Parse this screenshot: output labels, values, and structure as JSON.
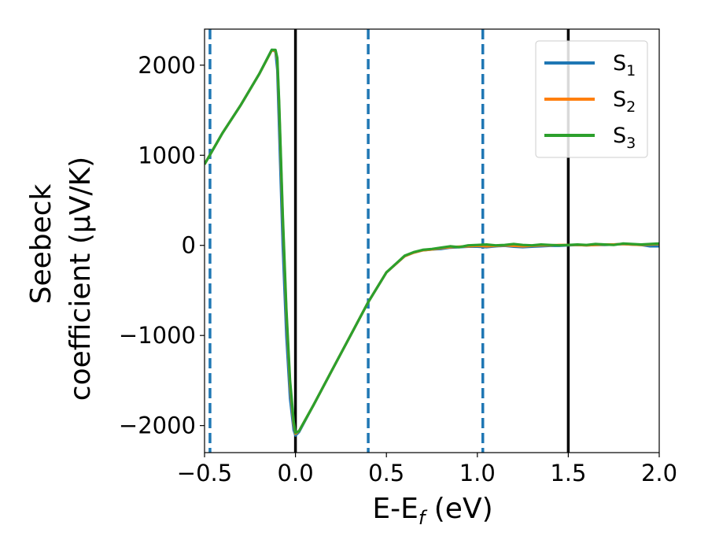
{
  "chart_data": {
    "type": "line",
    "xlabel": "E-E",
    "xlabel_sub": "f",
    "xlabel_unit": " (eV)",
    "ylabel_line1": "Seebeck",
    "ylabel_line2": "coefficient  (μV/K)",
    "xlim": [
      -0.5,
      2.0
    ],
    "ylim": [
      -2300,
      2400
    ],
    "xticks": [
      -0.5,
      0.0,
      0.5,
      1.0,
      1.5,
      2.0
    ],
    "xtick_labels": [
      "−0.5",
      "0.0",
      "0.5",
      "1.0",
      "1.5",
      "2.0"
    ],
    "yticks": [
      -2000,
      -1000,
      0,
      1000,
      2000
    ],
    "ytick_labels": [
      "−2000",
      "−1000",
      "0",
      "1000",
      "2000"
    ],
    "grid": false,
    "legend_position": "top-right",
    "vlines": [
      {
        "x": -0.47,
        "style": "dashed",
        "color": "#1f77b4"
      },
      {
        "x": 0.0,
        "style": "solid",
        "color": "#000000"
      },
      {
        "x": 0.4,
        "style": "dashed",
        "color": "#1f77b4"
      },
      {
        "x": 1.03,
        "style": "dashed",
        "color": "#1f77b4"
      },
      {
        "x": 1.5,
        "style": "solid",
        "color": "#000000"
      }
    ],
    "series": [
      {
        "name": "S",
        "sub": "1",
        "color": "#1f77b4",
        "x": [
          -0.5,
          -0.4,
          -0.3,
          -0.2,
          -0.13,
          -0.11,
          -0.1,
          -0.09,
          -0.07,
          -0.05,
          -0.03,
          -0.01,
          0.0,
          0.02,
          0.1,
          0.2,
          0.3,
          0.4,
          0.5,
          0.6,
          0.65,
          0.7,
          0.75,
          0.8,
          0.85,
          0.9,
          0.95,
          1.0,
          1.05,
          1.1,
          1.15,
          1.2,
          1.25,
          1.3,
          1.35,
          1.4,
          1.45,
          1.5,
          1.55,
          1.6,
          1.65,
          1.7,
          1.75,
          1.8,
          1.85,
          1.9,
          1.95,
          2.0
        ],
        "y": [
          900,
          1250,
          1560,
          1900,
          2170,
          2150,
          1950,
          1300,
          0,
          -1000,
          -1700,
          -2050,
          -2110,
          -2070,
          -1770,
          -1390,
          -1010,
          -630,
          -300,
          -120,
          -80,
          -55,
          -45,
          -40,
          -25,
          -20,
          -15,
          -15,
          -20,
          -10,
          -5,
          -15,
          -20,
          -15,
          -10,
          -5,
          -5,
          0,
          5,
          0,
          5,
          5,
          10,
          15,
          10,
          5,
          -10,
          -10
        ]
      },
      {
        "name": "S",
        "sub": "2",
        "color": "#ff7f0e",
        "x": [
          -0.5,
          -0.4,
          -0.3,
          -0.2,
          -0.13,
          -0.11,
          -0.1,
          -0.09,
          -0.07,
          -0.05,
          -0.03,
          -0.01,
          0.0,
          0.02,
          0.1,
          0.2,
          0.3,
          0.4,
          0.5,
          0.6,
          0.65,
          0.7,
          0.75,
          0.8,
          0.85,
          0.9,
          0.95,
          1.0,
          1.05,
          1.1,
          1.15,
          1.2,
          1.25,
          1.3,
          1.35,
          1.4,
          1.45,
          1.5,
          1.55,
          1.6,
          1.65,
          1.7,
          1.75,
          1.8,
          1.85,
          1.9,
          1.95,
          2.0
        ],
        "y": [
          900,
          1250,
          1560,
          1900,
          2165,
          2160,
          2060,
          1550,
          300,
          -750,
          -1550,
          -1980,
          -2090,
          -2060,
          -1770,
          -1390,
          -1010,
          -630,
          -300,
          -120,
          -80,
          -55,
          -45,
          -30,
          -20,
          -15,
          -10,
          -5,
          -10,
          -5,
          0,
          -5,
          -10,
          -5,
          0,
          0,
          5,
          5,
          5,
          0,
          5,
          10,
          10,
          15,
          10,
          5,
          10,
          15
        ]
      },
      {
        "name": "S",
        "sub": "3",
        "color": "#2ca02c",
        "x": [
          -0.5,
          -0.4,
          -0.3,
          -0.2,
          -0.13,
          -0.11,
          -0.1,
          -0.09,
          -0.07,
          -0.05,
          -0.03,
          -0.01,
          0.0,
          0.02,
          0.1,
          0.2,
          0.3,
          0.4,
          0.5,
          0.6,
          0.65,
          0.7,
          0.75,
          0.8,
          0.85,
          0.9,
          0.95,
          1.0,
          1.05,
          1.1,
          1.15,
          1.2,
          1.25,
          1.3,
          1.35,
          1.4,
          1.45,
          1.5,
          1.55,
          1.6,
          1.65,
          1.7,
          1.75,
          1.8,
          1.85,
          1.9,
          1.95,
          2.0
        ],
        "y": [
          900,
          1250,
          1560,
          1900,
          2170,
          2170,
          2080,
          1600,
          350,
          -700,
          -1500,
          -1950,
          -2080,
          -2060,
          -1770,
          -1390,
          -1010,
          -630,
          -300,
          -115,
          -75,
          -50,
          -40,
          -25,
          -10,
          -20,
          0,
          5,
          10,
          0,
          5,
          15,
          5,
          0,
          10,
          5,
          0,
          5,
          10,
          5,
          15,
          10,
          5,
          20,
          15,
          10,
          15,
          20
        ]
      }
    ]
  }
}
